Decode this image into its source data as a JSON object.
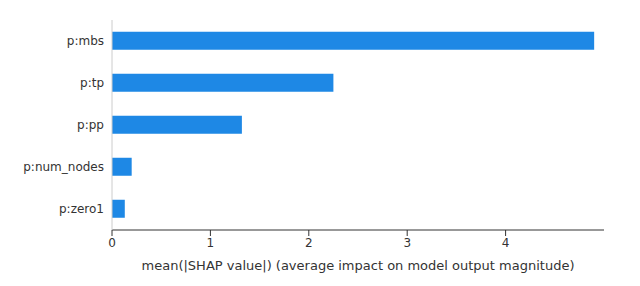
{
  "chart_data": {
    "type": "bar",
    "orientation": "horizontal",
    "categories": [
      "p:mbs",
      "p:tp",
      "p:pp",
      "p:num_nodes",
      "p:zero1"
    ],
    "values": [
      4.9,
      2.25,
      1.32,
      0.2,
      0.13
    ],
    "color": "#1e88e5",
    "x_label": "mean(|SHAP value|) (average impact on model output magnitude)",
    "xlim": [
      0,
      5
    ],
    "xticks": [
      0,
      1,
      2,
      3,
      4
    ],
    "grid": false
  }
}
